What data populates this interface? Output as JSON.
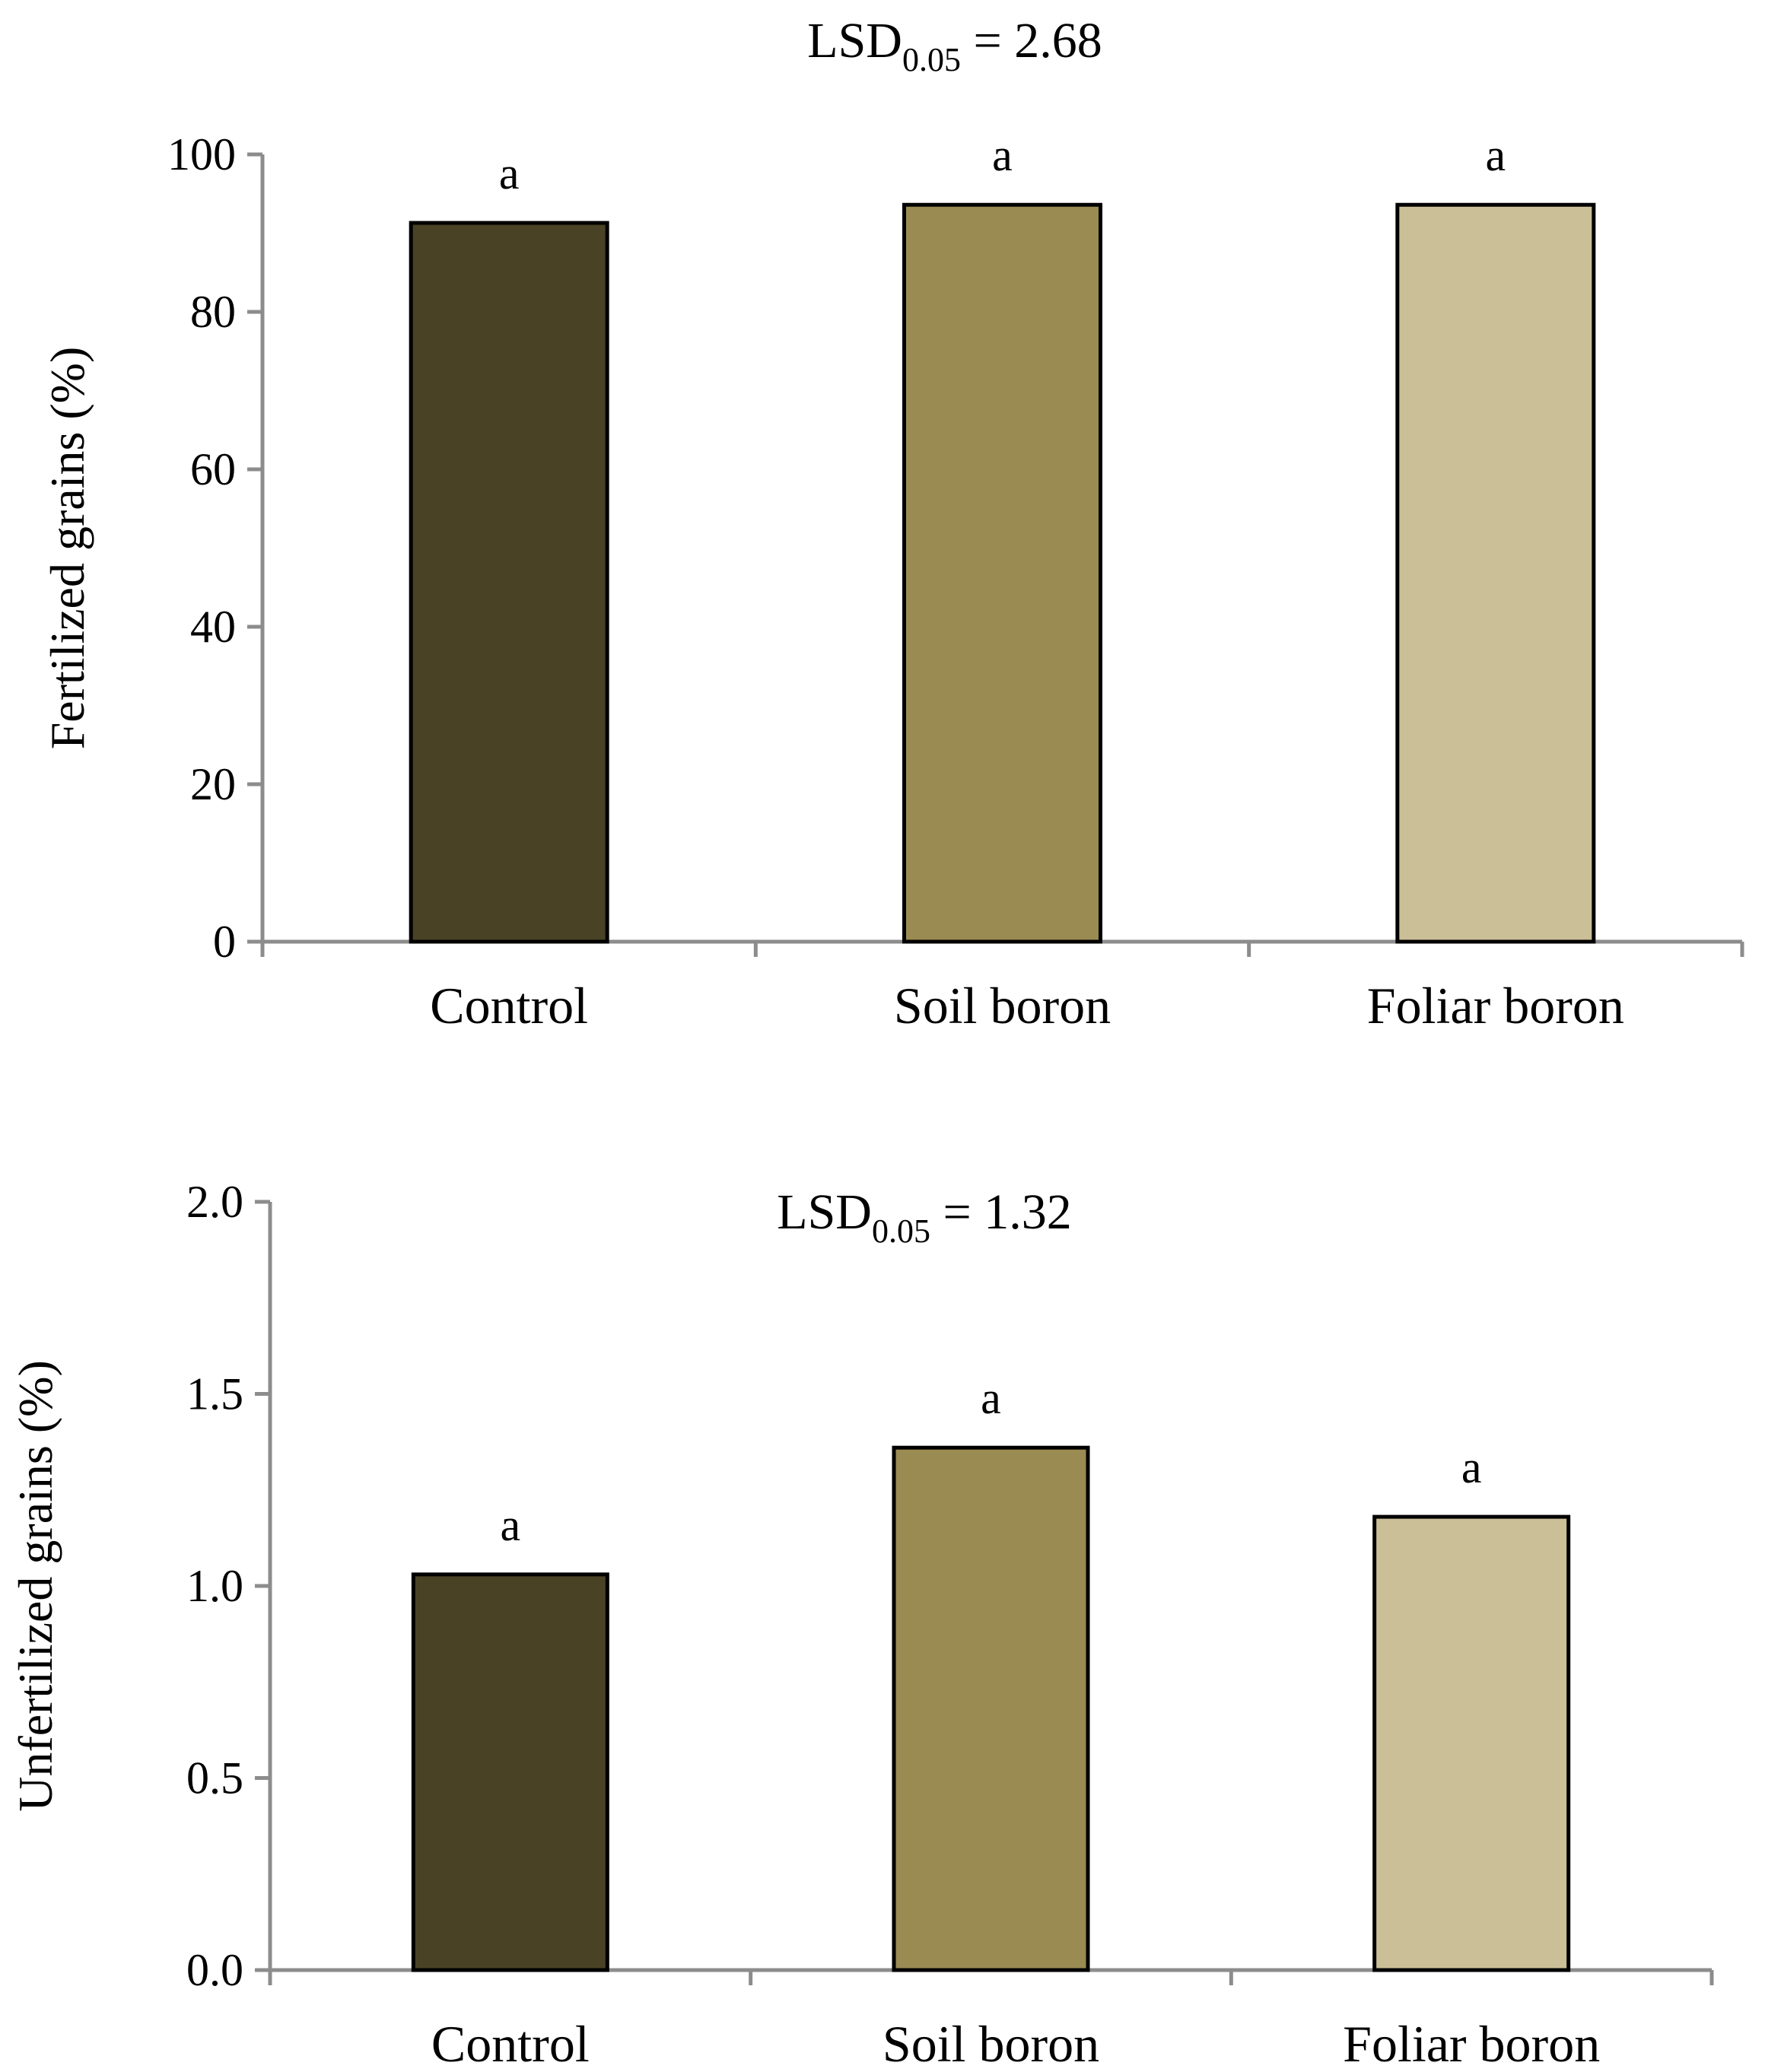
{
  "chart_data": [
    {
      "type": "bar",
      "annotation": {
        "prefix": "LSD",
        "subscript": "0.05",
        "suffix": " = 2.68"
      },
      "ylabel": "Fertilized grains (%)",
      "ylim": [
        0,
        100
      ],
      "yticks": [
        "0",
        "20",
        "40",
        "60",
        "80",
        "100"
      ],
      "categories": [
        "Control",
        "Soil boron",
        "Foliar boron"
      ],
      "values": [
        91.3,
        93.6,
        93.6
      ],
      "letters": [
        "a",
        "a",
        "a"
      ],
      "colors": [
        "#4a4225",
        "#9a8b53",
        "#cbbf98"
      ]
    },
    {
      "type": "bar",
      "annotation": {
        "prefix": "LSD",
        "subscript": "0.05",
        "suffix": " = 1.32"
      },
      "ylabel": "Unfertilized grains (%)",
      "ylim": [
        0,
        2.0
      ],
      "yticks": [
        "0.0",
        "0.5",
        "1.0",
        "1.5",
        "2.0"
      ],
      "categories": [
        "Control",
        "Soil boron",
        "Foliar boron"
      ],
      "values": [
        1.03,
        1.36,
        1.18
      ],
      "letters": [
        "a",
        "a",
        "a"
      ],
      "colors": [
        "#4a4225",
        "#9a8b53",
        "#cbbf98"
      ]
    }
  ]
}
